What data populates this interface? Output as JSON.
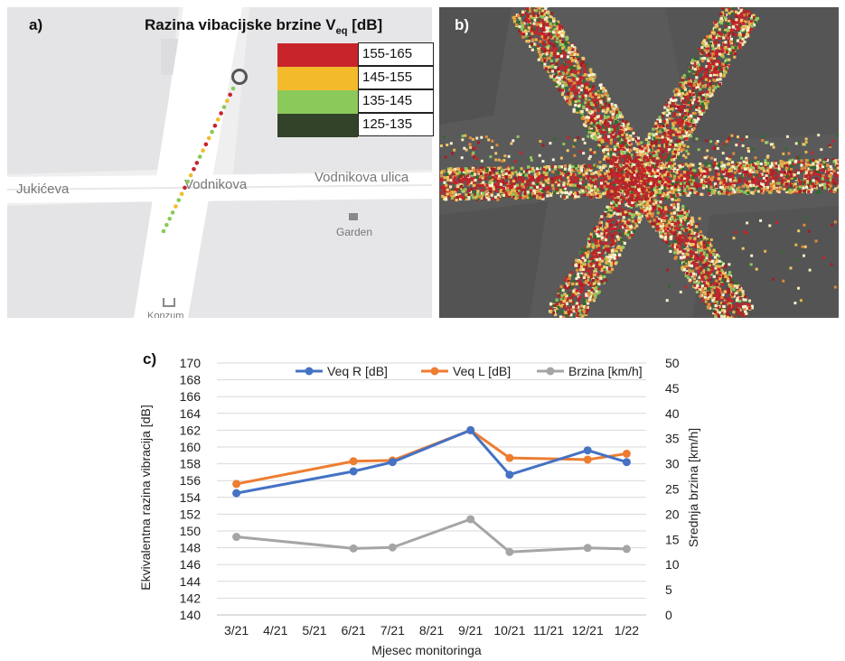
{
  "panels": {
    "a": "a)",
    "b": "b)",
    "c": "c)"
  },
  "legend": {
    "title_main": "Razina vibacijske brzine  V",
    "title_sub": "eq",
    "title_unit": " [dB]",
    "items": [
      {
        "label": "155-165",
        "color": "#c8242b"
      },
      {
        "label": "145-155",
        "color": "#f3bb2b"
      },
      {
        "label": "135-145",
        "color": "#8bc95a"
      },
      {
        "label": "125-135",
        "color": "#33432a"
      }
    ]
  },
  "map_labels": {
    "jukiceva": "Jukićeva",
    "vodnikova": "Vodnikova",
    "vodnikova_ulica": "Vodnikova ulica",
    "garden": "Garden",
    "konzum": "Konzum"
  },
  "chart_data": {
    "type": "line",
    "categories": [
      "3/21",
      "4/21",
      "5/21",
      "6/21",
      "7/21",
      "8/21",
      "9/21",
      "10/21",
      "11/21",
      "12/21",
      "1/22"
    ],
    "xlabel": "Mjesec monitoringa",
    "ylabel": "Ekvivalentna razina vibracija [dB]",
    "y2label": "Srednja brzina [km/h]",
    "ylim": [
      140,
      170
    ],
    "y2lim": [
      0,
      50
    ],
    "yticks": [
      140,
      142,
      144,
      146,
      148,
      150,
      152,
      154,
      156,
      158,
      160,
      162,
      164,
      166,
      168,
      170
    ],
    "y2ticks": [
      0,
      5,
      10,
      15,
      20,
      25,
      30,
      35,
      40,
      45,
      50
    ],
    "legend_position": "top",
    "grid": true,
    "series": [
      {
        "name": "Veq R [dB]",
        "axis": "left",
        "color": "#4472c4",
        "points": [
          [
            "3/21",
            154.5
          ],
          [
            "6/21",
            157.1
          ],
          [
            "7/21",
            158.2
          ],
          [
            "9/21",
            162.0
          ],
          [
            "10/21",
            156.7
          ],
          [
            "12/21",
            159.6
          ],
          [
            "1/22",
            158.2
          ]
        ]
      },
      {
        "name": "Veq L [dB]",
        "axis": "left",
        "color": "#ed7d31",
        "points": [
          [
            "3/21",
            155.6
          ],
          [
            "6/21",
            158.3
          ],
          [
            "7/21",
            158.4
          ],
          [
            "9/21",
            162.0
          ],
          [
            "10/21",
            158.7
          ],
          [
            "12/21",
            158.5
          ],
          [
            "1/22",
            159.2
          ]
        ]
      },
      {
        "name": "Brzina [km/h]",
        "axis": "right",
        "color": "#a5a5a5",
        "points": [
          [
            "3/21",
            15.5
          ],
          [
            "6/21",
            13.2
          ],
          [
            "7/21",
            13.4
          ],
          [
            "9/21",
            19.0
          ],
          [
            "10/21",
            12.5
          ],
          [
            "12/21",
            13.3
          ],
          [
            "1/22",
            13.1
          ]
        ]
      }
    ]
  }
}
